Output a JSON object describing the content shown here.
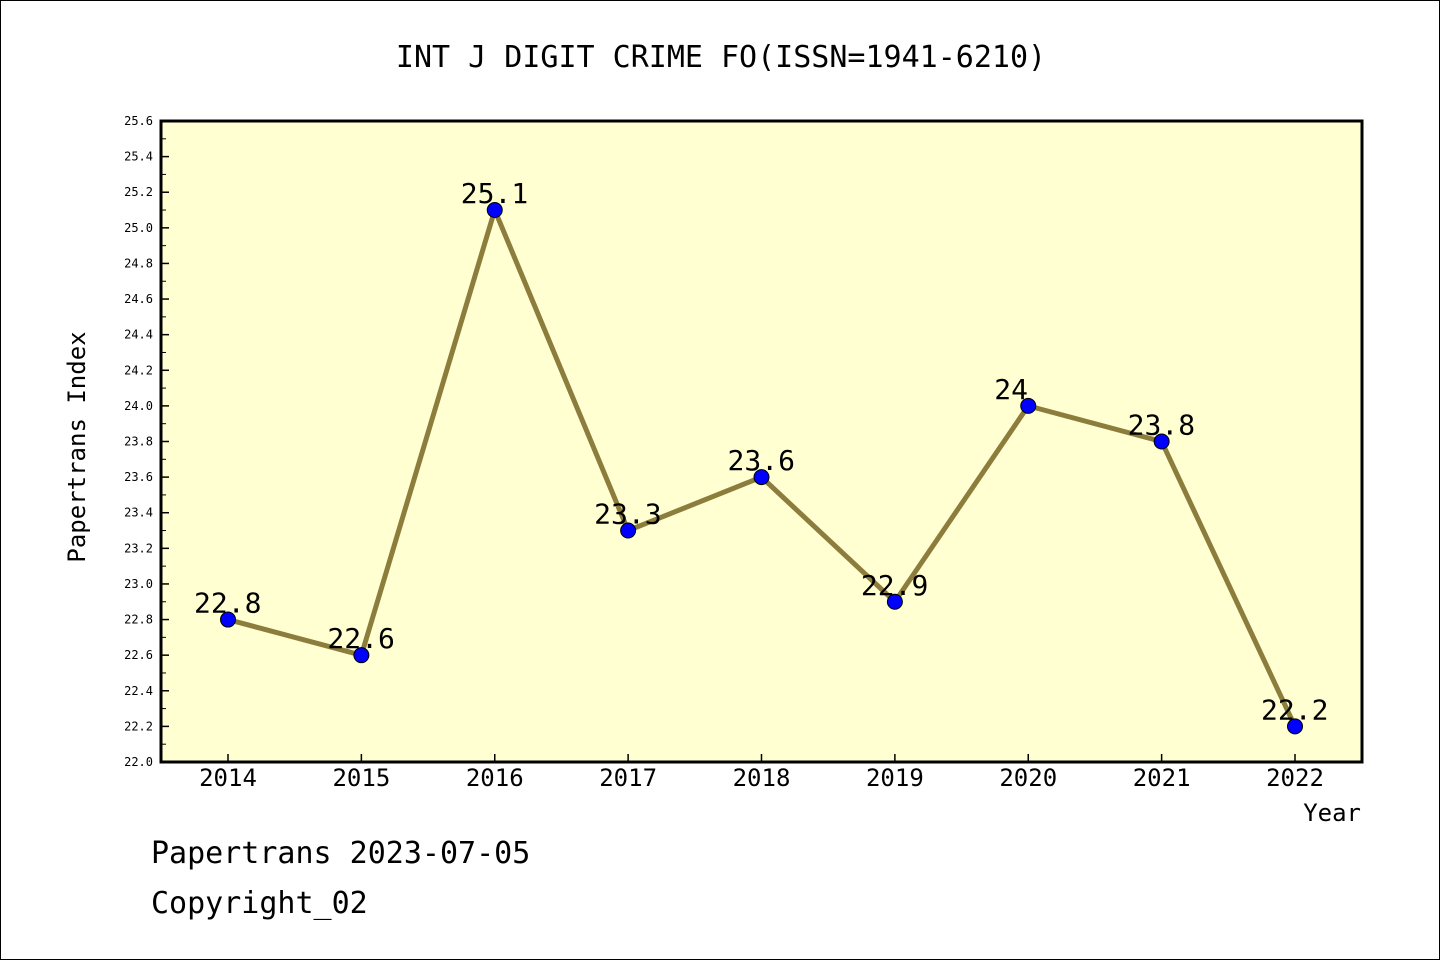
{
  "chart_data": {
    "type": "line",
    "title": "INT J DIGIT CRIME FO(ISSN=1941-6210)",
    "xlabel": "Year",
    "ylabel": "Papertrans Index",
    "categories": [
      "2014",
      "2015",
      "2016",
      "2017",
      "2018",
      "2019",
      "2020",
      "2021",
      "2022"
    ],
    "series": [
      {
        "values": [
          22.8,
          22.6,
          25.1,
          23.3,
          23.6,
          22.9,
          24.0,
          23.8,
          22.2
        ],
        "data_labels": [
          "22.8",
          "22.6",
          "25.1",
          "23.3",
          "23.6",
          "22.9",
          "24",
          "23.8",
          "22.2"
        ]
      }
    ],
    "ylim": [
      22.0,
      25.6
    ],
    "yticks": [
      "22.0",
      "22.2",
      "22.4",
      "22.6",
      "22.8",
      "23.0",
      "23.2",
      "23.4",
      "23.6",
      "23.8",
      "24.0",
      "24.2",
      "24.4",
      "24.6",
      "24.8",
      "25.0",
      "25.2",
      "25.4",
      "25.6"
    ],
    "grid": false,
    "colors": {
      "plot_background": "#ffffd2",
      "line": "#8c7d3c",
      "marker": "#0000ff"
    }
  },
  "footer": {
    "date_text": "Papertrans 2023-07-05",
    "copyright_text": "Copyright_02"
  }
}
